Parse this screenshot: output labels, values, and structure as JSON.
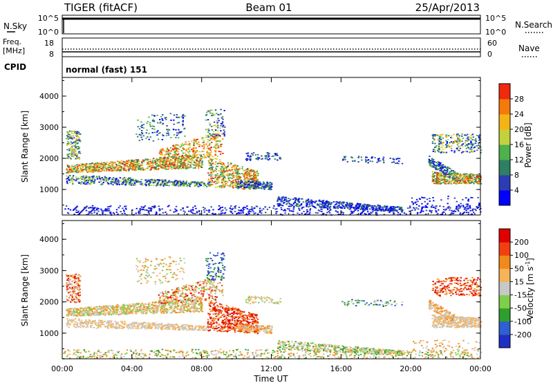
{
  "header": {
    "station": "TIGER (fitACF)",
    "beam": "Beam 01",
    "date": "25/Apr/2013"
  },
  "top_panels": {
    "nsky_label": "N.Sky",
    "nsearch_label": "N.Search",
    "nsky_ticks": [
      "10^5",
      "10^0"
    ],
    "nsearch_ticks": [
      "10^5",
      "10^0"
    ],
    "freq_label_1": "Freq.",
    "freq_label_2": "[MHz]",
    "freq_ticks": [
      "18",
      "8"
    ],
    "nave_label": "Nave",
    "nave_ticks": [
      "60",
      "0"
    ],
    "cpid_label": "CPID",
    "cpid_value": "normal (fast) 151"
  },
  "chart_data": [
    {
      "type": "heatmap",
      "quantity": "power",
      "ylabel": "Slant Range [km]",
      "ylim": [
        180,
        4600
      ],
      "yticks": [
        "1000",
        "2000",
        "3000",
        "4000"
      ],
      "colorbar_label": "Power [dB]",
      "colorbar_ticks": [
        "4",
        "8",
        "12",
        "16",
        "20",
        "24",
        "28"
      ],
      "colorbar_colors": [
        "#0000ff",
        "#2c3db4",
        "#2f7f63",
        "#4db14d",
        "#c3d23c",
        "#f5b416",
        "#f57a0b",
        "#f02a0b"
      ]
    },
    {
      "type": "heatmap",
      "quantity": "velocity",
      "ylabel": "Slant Range [km]",
      "ylim": [
        180,
        4600
      ],
      "yticks": [
        "1000",
        "2000",
        "3000",
        "4000"
      ],
      "colorbar_label": "Velocity [m s^-1]",
      "colorbar_ticks": [
        "200",
        "100",
        "50",
        "15",
        "-15",
        "-50",
        "-100",
        "-200"
      ],
      "colorbar_colors": [
        "#1f2fc4",
        "#2f5fd0",
        "#2f9e2f",
        "#7ecf4a",
        "#c8c8c8",
        "#f5b35a",
        "#f08a1a",
        "#f04010",
        "#e00000"
      ]
    }
  ],
  "xaxis": {
    "label": "Time UT",
    "ticks": [
      "00:00",
      "04:00",
      "08:00",
      "12:00",
      "16:00",
      "20:00",
      "00:00"
    ],
    "range_hours": [
      0,
      24
    ]
  }
}
